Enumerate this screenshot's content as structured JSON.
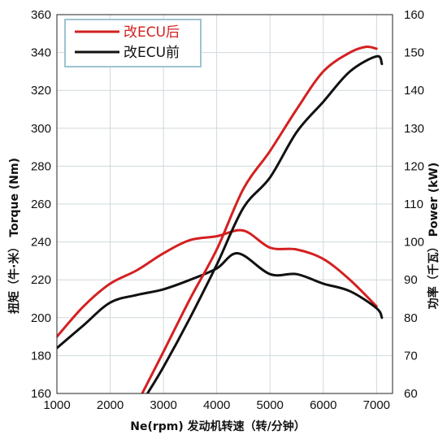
{
  "chart_data": {
    "type": "line",
    "title": "",
    "xlabel": "Ne(rpm) 发动机转速（转/分钟）",
    "ylabel_left": "扭矩（牛·米） Torque (Nm)",
    "ylabel_right": "功率（千瓦） Power (kW)",
    "x_ticks": [
      "1000",
      "2000",
      "3000",
      "4000",
      "5000",
      "6000",
      "7000"
    ],
    "y_left_ticks": [
      "160",
      "180",
      "200",
      "220",
      "240",
      "260",
      "280",
      "300",
      "320",
      "340",
      "360"
    ],
    "y_right_ticks": [
      "60",
      "70",
      "80",
      "90",
      "100",
      "110",
      "120",
      "130",
      "140",
      "150",
      "160"
    ],
    "xlim": [
      1000,
      7300
    ],
    "ylim_left": [
      160,
      360
    ],
    "ylim_right": [
      60,
      160
    ],
    "grid": true,
    "legend_position": "top-left",
    "legend": [
      "改ECU后",
      "改ECU前"
    ],
    "colors": {
      "after": "#d42020",
      "before": "#111111",
      "grid": "#cfd8dc"
    },
    "series": [
      {
        "name": "改ECU后",
        "quantity": "torque",
        "axis": "left",
        "color": "#d42020",
        "x": [
          1000,
          1500,
          2000,
          2500,
          3000,
          3500,
          4000,
          4500,
          5000,
          5500,
          6000,
          6500,
          7000
        ],
        "y": [
          190,
          206,
          218,
          225,
          234,
          241,
          243,
          246,
          237,
          236,
          231,
          220,
          206
        ]
      },
      {
        "name": "改ECU前",
        "quantity": "torque",
        "axis": "left",
        "color": "#111111",
        "x": [
          1000,
          1500,
          2000,
          2500,
          3000,
          3500,
          4000,
          4400,
          5000,
          5500,
          6000,
          6500,
          7000,
          7100
        ],
        "y": [
          184,
          196,
          208,
          212,
          215,
          220,
          226,
          234,
          223,
          223,
          218,
          214,
          205,
          200
        ]
      },
      {
        "name": "改ECU后",
        "quantity": "power",
        "axis": "right",
        "color": "#d42020",
        "x": [
          2600,
          3000,
          3500,
          4000,
          4500,
          5000,
          5500,
          6000,
          6500,
          6800,
          7000
        ],
        "y": [
          60,
          71,
          85,
          98,
          114,
          124,
          135,
          145,
          150,
          151.5,
          151
        ]
      },
      {
        "name": "改ECU前",
        "quantity": "power",
        "axis": "right",
        "color": "#111111",
        "x": [
          2700,
          3000,
          3500,
          4000,
          4500,
          5000,
          5500,
          6000,
          6500,
          7000,
          7100
        ],
        "y": [
          60,
          67,
          80,
          94,
          109,
          117,
          129,
          137,
          145,
          149,
          147
        ]
      }
    ]
  }
}
